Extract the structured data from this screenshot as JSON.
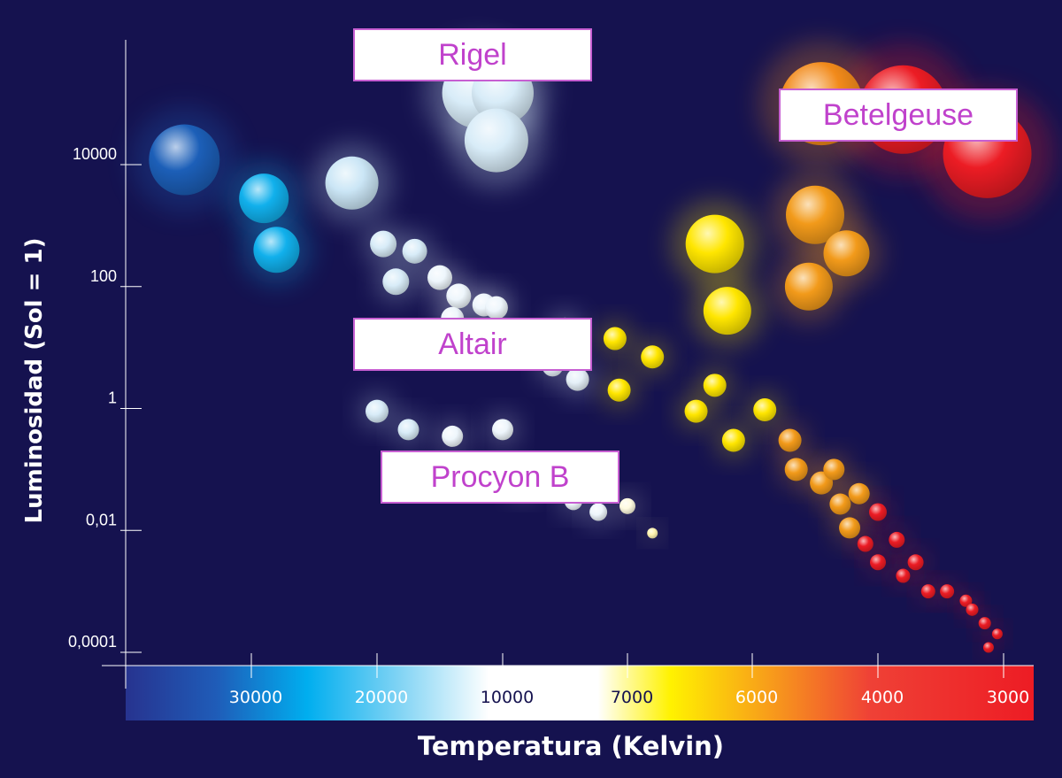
{
  "chart_data": {
    "type": "scatter",
    "title": "",
    "xlabel": "Temperatura (Kelvin)",
    "ylabel": "Luminosidad (Sol = 1)",
    "x_ticks": [
      "30000",
      "20000",
      "10000",
      "7000",
      "6000",
      "4000",
      "3000"
    ],
    "y_ticks": [
      "10000",
      "100",
      "1",
      "0,01",
      "0,0001"
    ],
    "y_scale": "log",
    "x_scale": "decreasing",
    "grid": false,
    "legend": "none",
    "colorbar": [
      "#2a3a9a",
      "#00b4f0",
      "#ffffff",
      "#ffffff",
      "#fff000",
      "#f28a00",
      "#ec1c24"
    ],
    "labels": [
      {
        "name": "Rigel",
        "temperature": 11000,
        "luminosity": 120000
      },
      {
        "name": "Betelgeuse",
        "temperature": 3500,
        "luminosity": 50000
      },
      {
        "name": "Altair",
        "temperature": 7500,
        "luminosity": 10
      },
      {
        "name": "Procyon B",
        "temperature": 8000,
        "luminosity": 0.05
      }
    ],
    "series": [
      {
        "group": "main-sequence",
        "points": [
          {
            "x": 38000,
            "y": 12000,
            "color": "#1c5fb8",
            "r": 40
          },
          {
            "x": 29000,
            "y": 2800,
            "color": "#11b0ec",
            "r": 28
          },
          {
            "x": 28000,
            "y": 400,
            "color": "#11b0ec",
            "r": 26
          },
          {
            "x": 22000,
            "y": 5000,
            "color": "#cbe6f6",
            "r": 30
          },
          {
            "x": 19500,
            "y": 500,
            "color": "#d8ecf8",
            "r": 15
          },
          {
            "x": 18500,
            "y": 120,
            "color": "#d8ecf8",
            "r": 15
          },
          {
            "x": 17000,
            "y": 380,
            "color": "#d8ecf8",
            "r": 14
          },
          {
            "x": 15000,
            "y": 140,
            "color": "#eef6fc",
            "r": 14
          },
          {
            "x": 13500,
            "y": 70,
            "color": "#eef6fc",
            "r": 14
          },
          {
            "x": 14000,
            "y": 30,
            "color": "#eef6fc",
            "r": 13
          },
          {
            "x": 11500,
            "y": 50,
            "color": "#eef6fc",
            "r": 13
          },
          {
            "x": 10500,
            "y": 45,
            "color": "#eef6fc",
            "r": 13
          },
          {
            "x": 8500,
            "y": 20,
            "color": "#eef6fc",
            "r": 13
          },
          {
            "x": 8800,
            "y": 5,
            "color": "#e5f0f8",
            "r": 12
          },
          {
            "x": 8200,
            "y": 3,
            "color": "#e5f0f8",
            "r": 13
          },
          {
            "x": 7300,
            "y": 14,
            "color": "#ffe600",
            "r": 13
          },
          {
            "x": 6800,
            "y": 7,
            "color": "#ffe600",
            "r": 13
          },
          {
            "x": 7200,
            "y": 2,
            "color": "#ffe600",
            "r": 13
          },
          {
            "x": 6300,
            "y": 2.4,
            "color": "#ffe600",
            "r": 13
          },
          {
            "x": 6450,
            "y": 0.9,
            "color": "#ffe600",
            "r": 13
          },
          {
            "x": 6150,
            "y": 0.3,
            "color": "#ffe600",
            "r": 13
          },
          {
            "x": 5800,
            "y": 0.95,
            "color": "#ffe600",
            "r": 13
          },
          {
            "x": 5400,
            "y": 0.3,
            "color": "#f29a1a",
            "r": 13
          },
          {
            "x": 5300,
            "y": 0.1,
            "color": "#f29a1a",
            "r": 13
          },
          {
            "x": 4900,
            "y": 0.06,
            "color": "#f29a1a",
            "r": 13
          },
          {
            "x": 4700,
            "y": 0.1,
            "color": "#f29a1a",
            "r": 12
          },
          {
            "x": 4600,
            "y": 0.027,
            "color": "#f29a1a",
            "r": 12
          },
          {
            "x": 4300,
            "y": 0.04,
            "color": "#f29a1a",
            "r": 12
          },
          {
            "x": 4450,
            "y": 0.011,
            "color": "#f29a1a",
            "r": 12
          },
          {
            "x": 4000,
            "y": 0.02,
            "color": "#ec1c24",
            "r": 10
          },
          {
            "x": 3850,
            "y": 0.007,
            "color": "#ec1c24",
            "r": 9
          },
          {
            "x": 4200,
            "y": 0.006,
            "color": "#ec1c24",
            "r": 9
          },
          {
            "x": 4000,
            "y": 0.003,
            "color": "#ec1c24",
            "r": 9
          },
          {
            "x": 3700,
            "y": 0.003,
            "color": "#ec1c24",
            "r": 9
          },
          {
            "x": 3800,
            "y": 0.0018,
            "color": "#ec1c24",
            "r": 8
          },
          {
            "x": 3600,
            "y": 0.001,
            "color": "#ec1c24",
            "r": 8
          },
          {
            "x": 3450,
            "y": 0.001,
            "color": "#ec1c24",
            "r": 8
          },
          {
            "x": 3300,
            "y": 0.0007,
            "color": "#ec1c24",
            "r": 7
          },
          {
            "x": 3250,
            "y": 0.0005,
            "color": "#ec1c24",
            "r": 7
          },
          {
            "x": 3150,
            "y": 0.0003,
            "color": "#ec1c24",
            "r": 7
          },
          {
            "x": 3050,
            "y": 0.0002,
            "color": "#ec1c24",
            "r": 6
          },
          {
            "x": 3120,
            "y": 0.00012,
            "color": "#ec1c24",
            "r": 6
          }
        ]
      },
      {
        "group": "blue-supergiants",
        "points": [
          {
            "x": 12000,
            "y": 150000,
            "color": "#d8ecf8",
            "r": 40
          },
          {
            "x": 10000,
            "y": 150000,
            "color": "#d8ecf8",
            "r": 35
          },
          {
            "x": 10500,
            "y": 25000,
            "color": "#d8ecf8",
            "r": 36
          }
        ]
      },
      {
        "group": "red-supergiants",
        "points": [
          {
            "x": 4900,
            "y": 100000,
            "color": "#f28a1a",
            "r": 47
          },
          {
            "x": 3800,
            "y": 80000,
            "color": "#ec1c24",
            "r": 50
          },
          {
            "x": 3130,
            "y": 15000,
            "color": "#ec1c24",
            "r": 50
          }
        ]
      },
      {
        "group": "giants",
        "points": [
          {
            "x": 6300,
            "y": 500,
            "color": "#ffe600",
            "r": 33
          },
          {
            "x": 6200,
            "y": 40,
            "color": "#ffe600",
            "r": 27
          },
          {
            "x": 5000,
            "y": 1500,
            "color": "#f29a1a",
            "r": 33
          },
          {
            "x": 5100,
            "y": 100,
            "color": "#f29a1a",
            "r": 27
          },
          {
            "x": 4500,
            "y": 350,
            "color": "#f29a1a",
            "r": 26
          }
        ]
      },
      {
        "group": "white-dwarfs",
        "points": [
          {
            "x": 20000,
            "y": 0.9,
            "color": "#d8ecf8",
            "r": 13
          },
          {
            "x": 17500,
            "y": 0.45,
            "color": "#d8ecf8",
            "r": 12
          },
          {
            "x": 14000,
            "y": 0.35,
            "color": "#eef6fc",
            "r": 12
          },
          {
            "x": 10000,
            "y": 0.45,
            "color": "#eef6fc",
            "r": 12
          },
          {
            "x": 9500,
            "y": 0.06,
            "color": "#eef6fc",
            "r": 11
          },
          {
            "x": 8300,
            "y": 0.03,
            "color": "#eef6fc",
            "r": 10
          },
          {
            "x": 7700,
            "y": 0.02,
            "color": "#eef6fc",
            "r": 10
          },
          {
            "x": 7000,
            "y": 0.025,
            "color": "#fffbe0",
            "r": 9
          },
          {
            "x": 6800,
            "y": 0.009,
            "color": "#fff4b0",
            "r": 6
          }
        ]
      }
    ]
  }
}
